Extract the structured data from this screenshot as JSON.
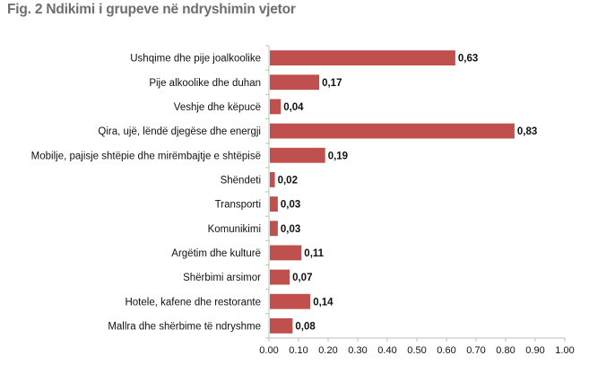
{
  "title": "Fig. 2 Ndikimi i grupeve në ndryshimin vjetor",
  "colors": {
    "bar": "#c0504d",
    "axis": "#bfbfbf",
    "text": "#111111",
    "title": "#6d6d6d"
  },
  "chart_data": {
    "type": "bar",
    "orientation": "horizontal",
    "title": "Fig. 2 Ndikimi i grupeve në ndryshimin vjetor",
    "xlabel": "",
    "ylabel": "",
    "xlim": [
      0,
      1
    ],
    "x_ticks": [
      "0.00",
      "0.10",
      "0.20",
      "0.30",
      "0.40",
      "0.50",
      "0.60",
      "0.70",
      "0.80",
      "0.90",
      "1.00"
    ],
    "grid": false,
    "legend": "none",
    "categories": [
      "Ushqime dhe pije joalkoolike",
      "Pije alkoolike dhe duhan",
      "Veshje dhe këpucë",
      "Qira, ujë, lëndë djegëse dhe energji",
      "Mobilje, pajisje shtëpie dhe mirëmbajtje e shtëpisë",
      "Shëndeti",
      "Transporti",
      "Komunikimi",
      "Argëtim dhe kulturë",
      "Shërbimi arsimor",
      "Hotele, kafene dhe restorante",
      "Mallra dhe shërbime të ndryshme"
    ],
    "values": [
      0.63,
      0.17,
      0.04,
      0.83,
      0.19,
      0.02,
      0.03,
      0.03,
      0.11,
      0.07,
      0.14,
      0.08
    ],
    "value_labels": [
      "0,63",
      "0,17",
      "0,04",
      "0,83",
      "0,19",
      "0,02",
      "0,03",
      "0,03",
      "0,11",
      "0,07",
      "0,14",
      "0,08"
    ]
  }
}
